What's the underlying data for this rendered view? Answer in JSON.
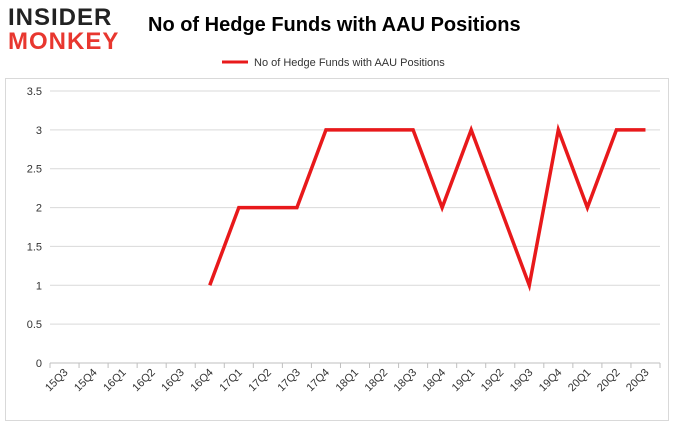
{
  "logo": {
    "line1": "INSIDER",
    "line2": "MONKEY"
  },
  "chart_data": {
    "type": "line",
    "title": "No of Hedge Funds with AAU Positions",
    "xlabel": "",
    "ylabel": "",
    "categories": [
      "15Q3",
      "15Q4",
      "16Q1",
      "16Q2",
      "16Q3",
      "16Q4",
      "17Q1",
      "17Q2",
      "17Q3",
      "17Q4",
      "18Q1",
      "18Q2",
      "18Q3",
      "18Q4",
      "19Q1",
      "19Q2",
      "19Q3",
      "19Q4",
      "20Q1",
      "20Q2",
      "20Q3"
    ],
    "series": [
      {
        "name": "No of Hedge Funds with AAU Positions",
        "color": "#e8191b",
        "values": [
          null,
          null,
          null,
          null,
          null,
          1,
          2,
          2,
          2,
          3,
          3,
          3,
          3,
          2,
          3,
          2,
          1,
          3,
          2,
          3,
          3
        ]
      }
    ],
    "ylim": [
      0,
      3.5
    ],
    "yticks": [
      "0",
      "0.5",
      "1",
      "1.5",
      "2",
      "2.5",
      "3",
      "3.5"
    ],
    "grid": true,
    "legend": "top-center"
  }
}
